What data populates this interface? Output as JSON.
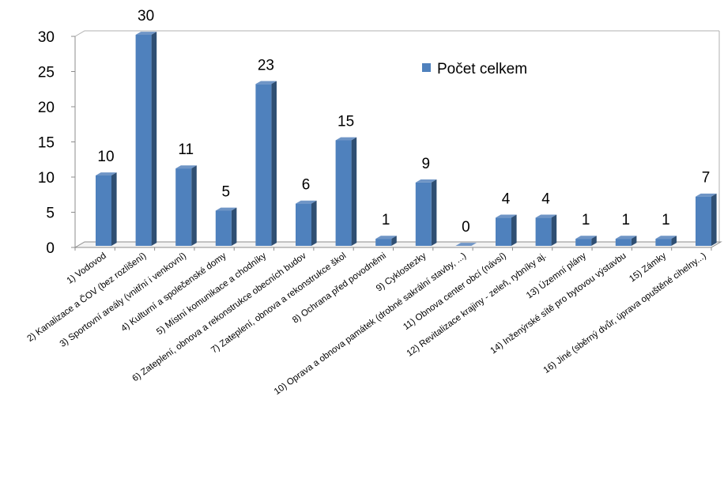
{
  "chart_data": {
    "type": "bar",
    "categories": [
      "1) Vodovod",
      "2) Kanalizace a ČOV (bez rozlišení)",
      "3) Sportovní areály (vnitřní i venkovní)",
      "4) Kulturní a společenské domy",
      "5) Místní komunikace a chodníky",
      "6) Zateplení, obnova a rekonstrukce obecních budov",
      "7) Zateplení, obnova a rekonstrukce škol",
      "8) Ochrana před povodněmi",
      "9) Cyklostezky",
      "10) Oprava a obnova památek (drobné sakrální stavby, ...)",
      "11) Obnova center obcí (návsí)",
      "12) Revitalizace krajiny - zeleň, rybníky aj.",
      "13) Územní plány",
      "14) Inženýrské sítě pro bytovou výstavbu",
      "15) Zámky",
      "16) Jiné (sběrný dvůr, úprava opuštěné cihelny...)"
    ],
    "series": [
      {
        "name": "Počet celkem",
        "values": [
          10,
          30,
          11,
          5,
          23,
          6,
          15,
          1,
          9,
          0,
          4,
          4,
          1,
          1,
          1,
          7
        ]
      }
    ],
    "ylim": [
      0,
      30
    ],
    "yticks": [
      "0",
      "5",
      "10",
      "15",
      "20",
      "25",
      "30"
    ],
    "grid": false,
    "legend_position": "top-right",
    "colors": {
      "front": "#4f81bd",
      "side": "#2f4f73",
      "top": "#6f95c6"
    }
  }
}
